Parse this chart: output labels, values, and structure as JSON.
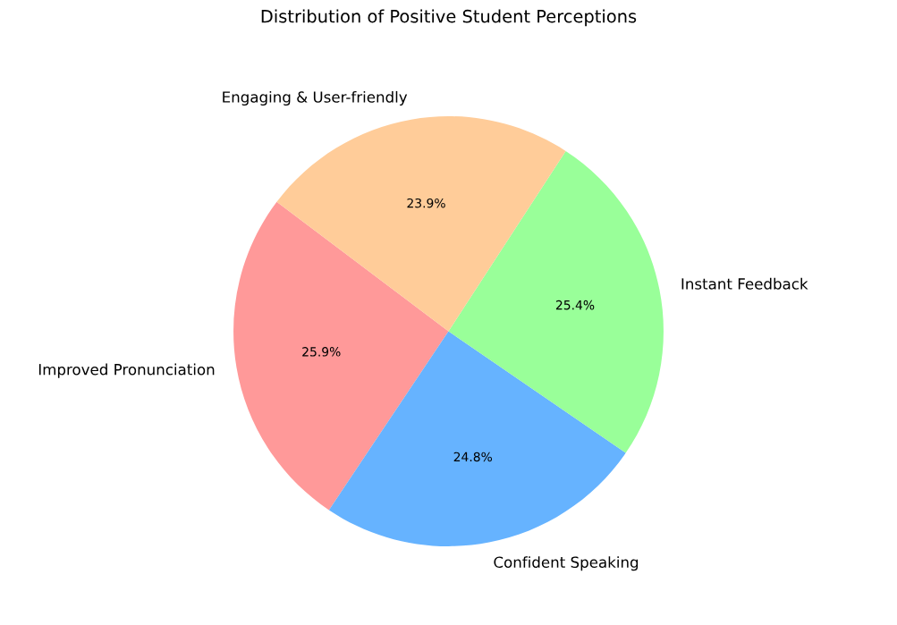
{
  "chart_data": {
    "type": "pie",
    "title": "Distribution of Positive Student Perceptions",
    "categories": [
      "Improved Pronunciation",
      "Confident Speaking",
      "Instant Feedback",
      "Engaging & User-friendly"
    ],
    "values": [
      25.9,
      24.8,
      25.4,
      23.9
    ],
    "colors": [
      "#ff9999",
      "#66b3ff",
      "#99ff99",
      "#ffcc99"
    ],
    "value_labels": [
      "25.9%",
      "24.8%",
      "25.4%",
      "23.9%"
    ]
  }
}
